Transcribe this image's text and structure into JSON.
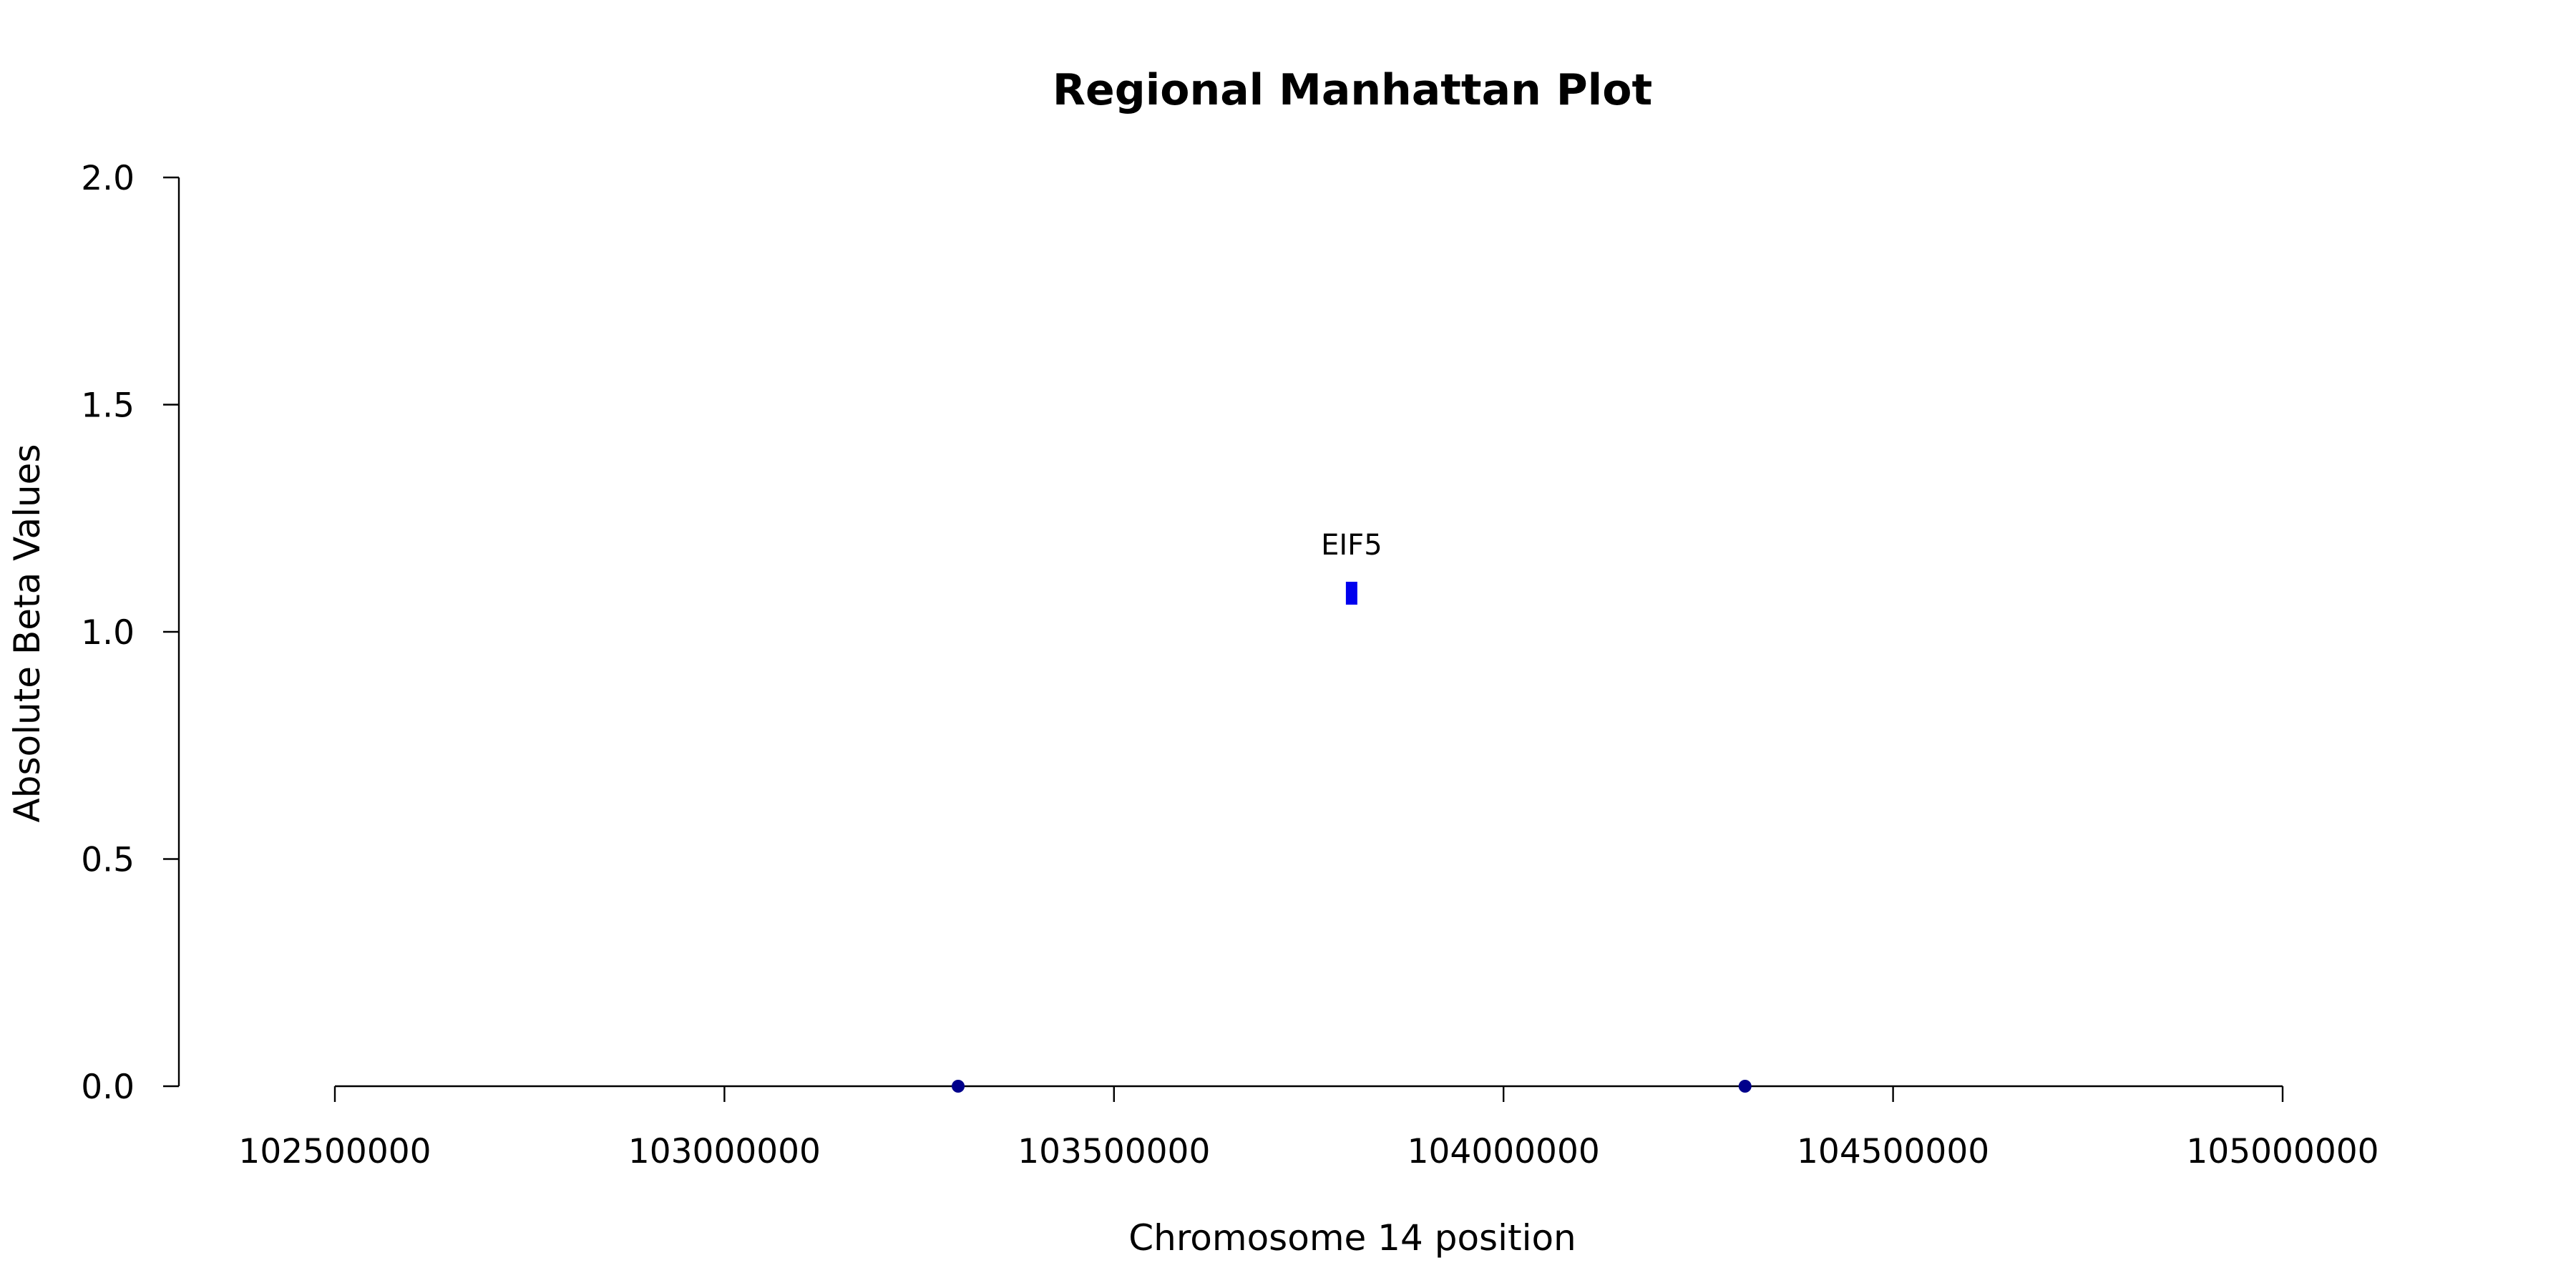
{
  "chart_data": {
    "type": "scatter",
    "title": "Regional Manhattan Plot",
    "xlabel": "Chromosome 14 position",
    "ylabel": "Absolute Beta Values",
    "xlim": [
      102500000,
      105000000
    ],
    "ylim": [
      0,
      2
    ],
    "x_ticks": [
      102500000,
      103000000,
      103500000,
      104000000,
      104500000,
      105000000
    ],
    "x_tick_labels": [
      "102500000",
      "103000000",
      "103500000",
      "104000000",
      "104500000",
      "105000000"
    ],
    "y_ticks": [
      0,
      0.5,
      1,
      1.5,
      2
    ],
    "y_tick_labels": [
      "0.0",
      "0.5",
      "1.0",
      "1.5",
      "2.0"
    ],
    "grid": false,
    "points": [
      {
        "x": 103300000,
        "y": 0,
        "color": "#00008b",
        "shape": "circle"
      },
      {
        "x": 104310000,
        "y": 0,
        "color": "#00008b",
        "shape": "circle"
      }
    ],
    "genes": [
      {
        "name": "EIF5",
        "x": 103805000,
        "y": 1.085,
        "color": "#0000ee"
      }
    ]
  }
}
